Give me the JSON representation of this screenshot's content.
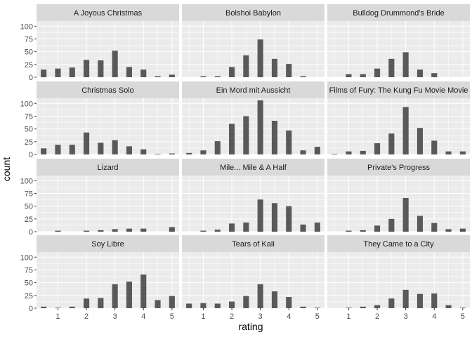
{
  "chart_data": {
    "type": "bar",
    "facet_layout": "facet_wrap 4 rows x 3 columns",
    "xlabel": "rating",
    "ylabel": "count",
    "x_ticks": [
      1,
      2,
      3,
      4,
      5
    ],
    "y_ticks": [
      0,
      25,
      50,
      75,
      100
    ],
    "xlim": [
      0.25,
      5.25
    ],
    "ylim": [
      0,
      110
    ],
    "x": [
      0.5,
      1.0,
      1.5,
      2.0,
      2.5,
      3.0,
      3.5,
      4.0,
      4.5,
      5.0
    ],
    "grid": true,
    "bar_color": "#595959",
    "panel_background": "#ebebeb",
    "strip_background": "#d9d9d9",
    "grid_color": "#ffffff",
    "panels": [
      {
        "title": "A Joyous Christmas",
        "values": [
          15,
          17,
          19,
          34,
          33,
          52,
          20,
          15,
          2,
          5
        ]
      },
      {
        "title": "Bolshoi Babylon",
        "values": [
          0,
          2,
          2,
          20,
          43,
          74,
          36,
          26,
          2,
          0
        ]
      },
      {
        "title": "Bulldog Drummond's Bride",
        "values": [
          0,
          6,
          6,
          17,
          36,
          49,
          15,
          8,
          0,
          0
        ]
      },
      {
        "title": "Christmas Solo",
        "values": [
          12,
          19,
          19,
          43,
          23,
          28,
          16,
          10,
          1,
          2
        ]
      },
      {
        "title": "Ein Mord mit Aussicht",
        "values": [
          3,
          8,
          26,
          60,
          75,
          106,
          66,
          47,
          8,
          15
        ]
      },
      {
        "title": "Films of Fury: The Kung Fu Movie Movie",
        "values": [
          1,
          6,
          7,
          22,
          41,
          93,
          52,
          27,
          6,
          6
        ]
      },
      {
        "title": "Lizard",
        "values": [
          0,
          2,
          0,
          2,
          3,
          5,
          6,
          6,
          0,
          9
        ]
      },
      {
        "title": "Mile... Mile & A Half",
        "values": [
          0,
          2,
          4,
          16,
          18,
          63,
          56,
          50,
          14,
          18
        ]
      },
      {
        "title": "Private's Progress",
        "values": [
          0,
          2,
          3,
          12,
          25,
          66,
          31,
          17,
          5,
          6
        ]
      },
      {
        "title": "Soy Libre",
        "values": [
          3,
          1,
          3,
          19,
          20,
          47,
          52,
          66,
          16,
          24
        ]
      },
      {
        "title": "Tears of Kali",
        "values": [
          9,
          10,
          9,
          13,
          24,
          47,
          33,
          22,
          3,
          1
        ]
      },
      {
        "title": "They Came to a City",
        "values": [
          0,
          1,
          3,
          6,
          19,
          36,
          28,
          29,
          6,
          1
        ]
      }
    ]
  }
}
